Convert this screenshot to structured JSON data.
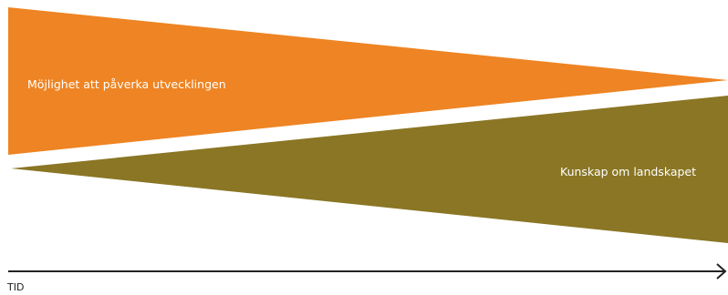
{
  "colors": {
    "opportunity": "#EE8423",
    "knowledge": "#8A7624",
    "axis": "#222222",
    "label_text": "#FFFFFF"
  },
  "wedges": {
    "opportunity_label": "Möjlighet att påverka utvecklingen",
    "knowledge_label": "Kunskap om landskapet"
  },
  "axis": {
    "label": "TID"
  }
}
